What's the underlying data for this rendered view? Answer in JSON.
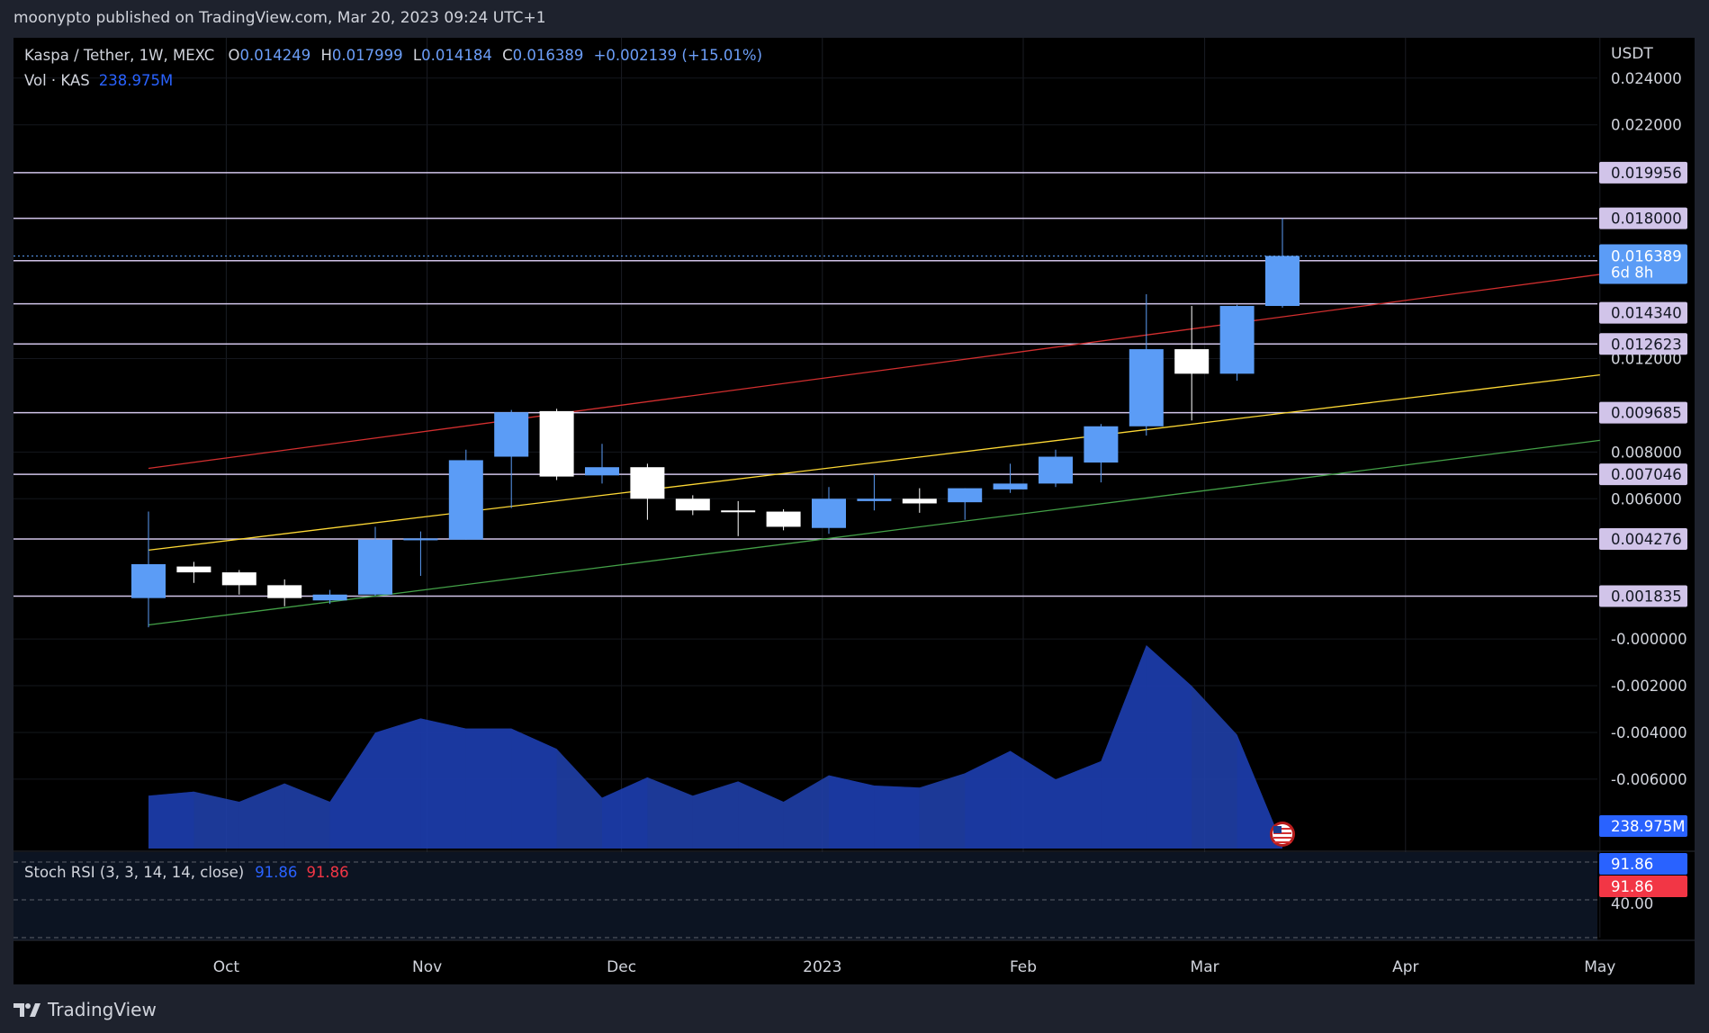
{
  "publisher": "moonypto published on TradingView.com, Mar 20, 2023 09:24 UTC+1",
  "brand": "TradingView",
  "legend": {
    "symbol": "Kaspa / Tether, 1W, MEXC",
    "open_label": "O",
    "open": "0.014249",
    "high_label": "H",
    "high": "0.017999",
    "low_label": "L",
    "low": "0.014184",
    "close_label": "C",
    "close": "0.016389",
    "change": "+0.002139 (+15.01%)",
    "vol_label": "Vol · KAS",
    "vol_value": "238.975M"
  },
  "rsi": {
    "label": "Stoch RSI (3, 3, 14, 14, close)",
    "k": "91.86",
    "d": "91.86",
    "level_label": "40.00"
  },
  "price_axis_currency": "USDT",
  "countdown": "6d 8h",
  "volume_tag": "238.975M",
  "colors": {
    "up": "#5b9cf6",
    "down": "#ffffff",
    "background": "#000000",
    "hline": "#d1c4e9",
    "red_trend": "#d32f2f",
    "yellow_trend": "#fdd835",
    "green_trend": "#43a047",
    "volume": "#1e3fb0",
    "rsi_k": "#2962ff",
    "rsi_d": "#f23645"
  },
  "chart_data": {
    "type": "candlestick",
    "symbol": "Kaspa / Tether",
    "interval": "1W",
    "ylim": [
      -0.008,
      0.025
    ],
    "y_ticks": [
      "0.024000",
      "0.022000",
      "0.012000",
      "0.008000",
      "0.006000",
      "-0.000000",
      "-0.002000",
      "-0.004000",
      "-0.006000"
    ],
    "y_tick_values": [
      0.024,
      0.022,
      0.012,
      0.008,
      0.006,
      0,
      -0.002,
      -0.004,
      -0.006
    ],
    "x_ticks": [
      {
        "label": "Oct",
        "date": "2022-10-01"
      },
      {
        "label": "Nov",
        "date": "2022-11-01"
      },
      {
        "label": "Dec",
        "date": "2022-12-01"
      },
      {
        "label": "2023",
        "date": "2023-01-01"
      },
      {
        "label": "Feb",
        "date": "2023-02-01"
      },
      {
        "label": "Mar",
        "date": "2023-03-01"
      },
      {
        "label": "Apr",
        "date": "2023-04-01"
      },
      {
        "label": "May",
        "date": "2023-05-01"
      }
    ],
    "candles": [
      {
        "date": "2022-09-19",
        "o": 0.00175,
        "h": 0.00545,
        "l": 0.0005,
        "c": 0.0032
      },
      {
        "date": "2022-09-26",
        "o": 0.0031,
        "h": 0.0033,
        "l": 0.0024,
        "c": 0.00285
      },
      {
        "date": "2022-10-03",
        "o": 0.00285,
        "h": 0.00295,
        "l": 0.0019,
        "c": 0.0023
      },
      {
        "date": "2022-10-10",
        "o": 0.0023,
        "h": 0.00255,
        "l": 0.0014,
        "c": 0.00175
      },
      {
        "date": "2022-10-17",
        "o": 0.00165,
        "h": 0.0021,
        "l": 0.0015,
        "c": 0.0019
      },
      {
        "date": "2022-10-24",
        "o": 0.0019,
        "h": 0.0048,
        "l": 0.00185,
        "c": 0.00425
      },
      {
        "date": "2022-10-31",
        "o": 0.00425,
        "h": 0.0046,
        "l": 0.0027,
        "c": 0.0043
      },
      {
        "date": "2022-11-07",
        "o": 0.00425,
        "h": 0.0081,
        "l": 0.00425,
        "c": 0.00765
      },
      {
        "date": "2022-11-14",
        "o": 0.0078,
        "h": 0.0098,
        "l": 0.0056,
        "c": 0.0097
      },
      {
        "date": "2022-11-21",
        "o": 0.00975,
        "h": 0.00985,
        "l": 0.0068,
        "c": 0.00695
      },
      {
        "date": "2022-11-28",
        "o": 0.007,
        "h": 0.00835,
        "l": 0.00665,
        "c": 0.00735
      },
      {
        "date": "2022-12-05",
        "o": 0.00735,
        "h": 0.0075,
        "l": 0.0051,
        "c": 0.006
      },
      {
        "date": "2022-12-12",
        "o": 0.006,
        "h": 0.00615,
        "l": 0.0053,
        "c": 0.0055
      },
      {
        "date": "2022-12-19",
        "o": 0.0055,
        "h": 0.0059,
        "l": 0.0044,
        "c": 0.00545
      },
      {
        "date": "2022-12-26",
        "o": 0.00545,
        "h": 0.00555,
        "l": 0.00465,
        "c": 0.0048
      },
      {
        "date": "2023-01-02",
        "o": 0.00475,
        "h": 0.0065,
        "l": 0.0045,
        "c": 0.006
      },
      {
        "date": "2023-01-09",
        "o": 0.0059,
        "h": 0.00705,
        "l": 0.0055,
        "c": 0.006
      },
      {
        "date": "2023-01-16",
        "o": 0.006,
        "h": 0.00645,
        "l": 0.0054,
        "c": 0.0058
      },
      {
        "date": "2023-01-23",
        "o": 0.00585,
        "h": 0.00645,
        "l": 0.0051,
        "c": 0.00645
      },
      {
        "date": "2023-01-30",
        "o": 0.0064,
        "h": 0.0075,
        "l": 0.00625,
        "c": 0.00665
      },
      {
        "date": "2023-02-06",
        "o": 0.00665,
        "h": 0.0081,
        "l": 0.0065,
        "c": 0.0078
      },
      {
        "date": "2023-02-13",
        "o": 0.00755,
        "h": 0.0092,
        "l": 0.0067,
        "c": 0.0091
      },
      {
        "date": "2023-02-20",
        "o": 0.0091,
        "h": 0.01475,
        "l": 0.0087,
        "c": 0.0124
      },
      {
        "date": "2023-02-27",
        "o": 0.0124,
        "h": 0.01425,
        "l": 0.00935,
        "c": 0.01135
      },
      {
        "date": "2023-03-06",
        "o": 0.01135,
        "h": 0.0143,
        "l": 0.01105,
        "c": 0.01425
      },
      {
        "date": "2023-03-13",
        "o": 0.01425,
        "h": 0.018,
        "l": 0.01418,
        "c": 0.01639
      }
    ],
    "volume_series": {
      "name": "Vol · KAS",
      "last": "238.975M",
      "relative_values": [
        0.26,
        0.28,
        0.23,
        0.32,
        0.23,
        0.57,
        0.64,
        0.59,
        0.59,
        0.49,
        0.25,
        0.35,
        0.26,
        0.33,
        0.23,
        0.36,
        0.31,
        0.3,
        0.37,
        0.48,
        0.34,
        0.43,
        1.0,
        0.8,
        0.56,
        0.02
      ]
    },
    "horizontal_levels": [
      {
        "value": 0.019956,
        "label": "0.019956"
      },
      {
        "value": 0.018,
        "label": "0.018000"
      },
      {
        "value": 0.016186,
        "label": "0.016186"
      },
      {
        "value": 0.01434,
        "label": "0.014340"
      },
      {
        "value": 0.012623,
        "label": "0.012623"
      },
      {
        "value": 0.009685,
        "label": "0.009685"
      },
      {
        "value": 0.007046,
        "label": "0.007046"
      },
      {
        "value": 0.004276,
        "label": "0.004276"
      },
      {
        "value": 0.001835,
        "label": "0.001835"
      }
    ],
    "last_price": {
      "value": 0.016389,
      "label": "0.016389"
    },
    "trendlines": [
      {
        "name": "red",
        "p1": {
          "date": "2022-09-19",
          "value": 0.0073
        },
        "p2": {
          "date": "2023-05-01",
          "value": 0.0156
        }
      },
      {
        "name": "yellow",
        "p1": {
          "date": "2022-09-19",
          "value": 0.0038
        },
        "p2": {
          "date": "2023-05-01",
          "value": 0.0113
        }
      },
      {
        "name": "green",
        "p1": {
          "date": "2022-09-19",
          "value": 0.0006
        },
        "p2": {
          "date": "2023-05-01",
          "value": 0.0085
        }
      }
    ],
    "stoch_rsi": {
      "k": 91.86,
      "d": 91.86,
      "level": 40.0
    }
  }
}
